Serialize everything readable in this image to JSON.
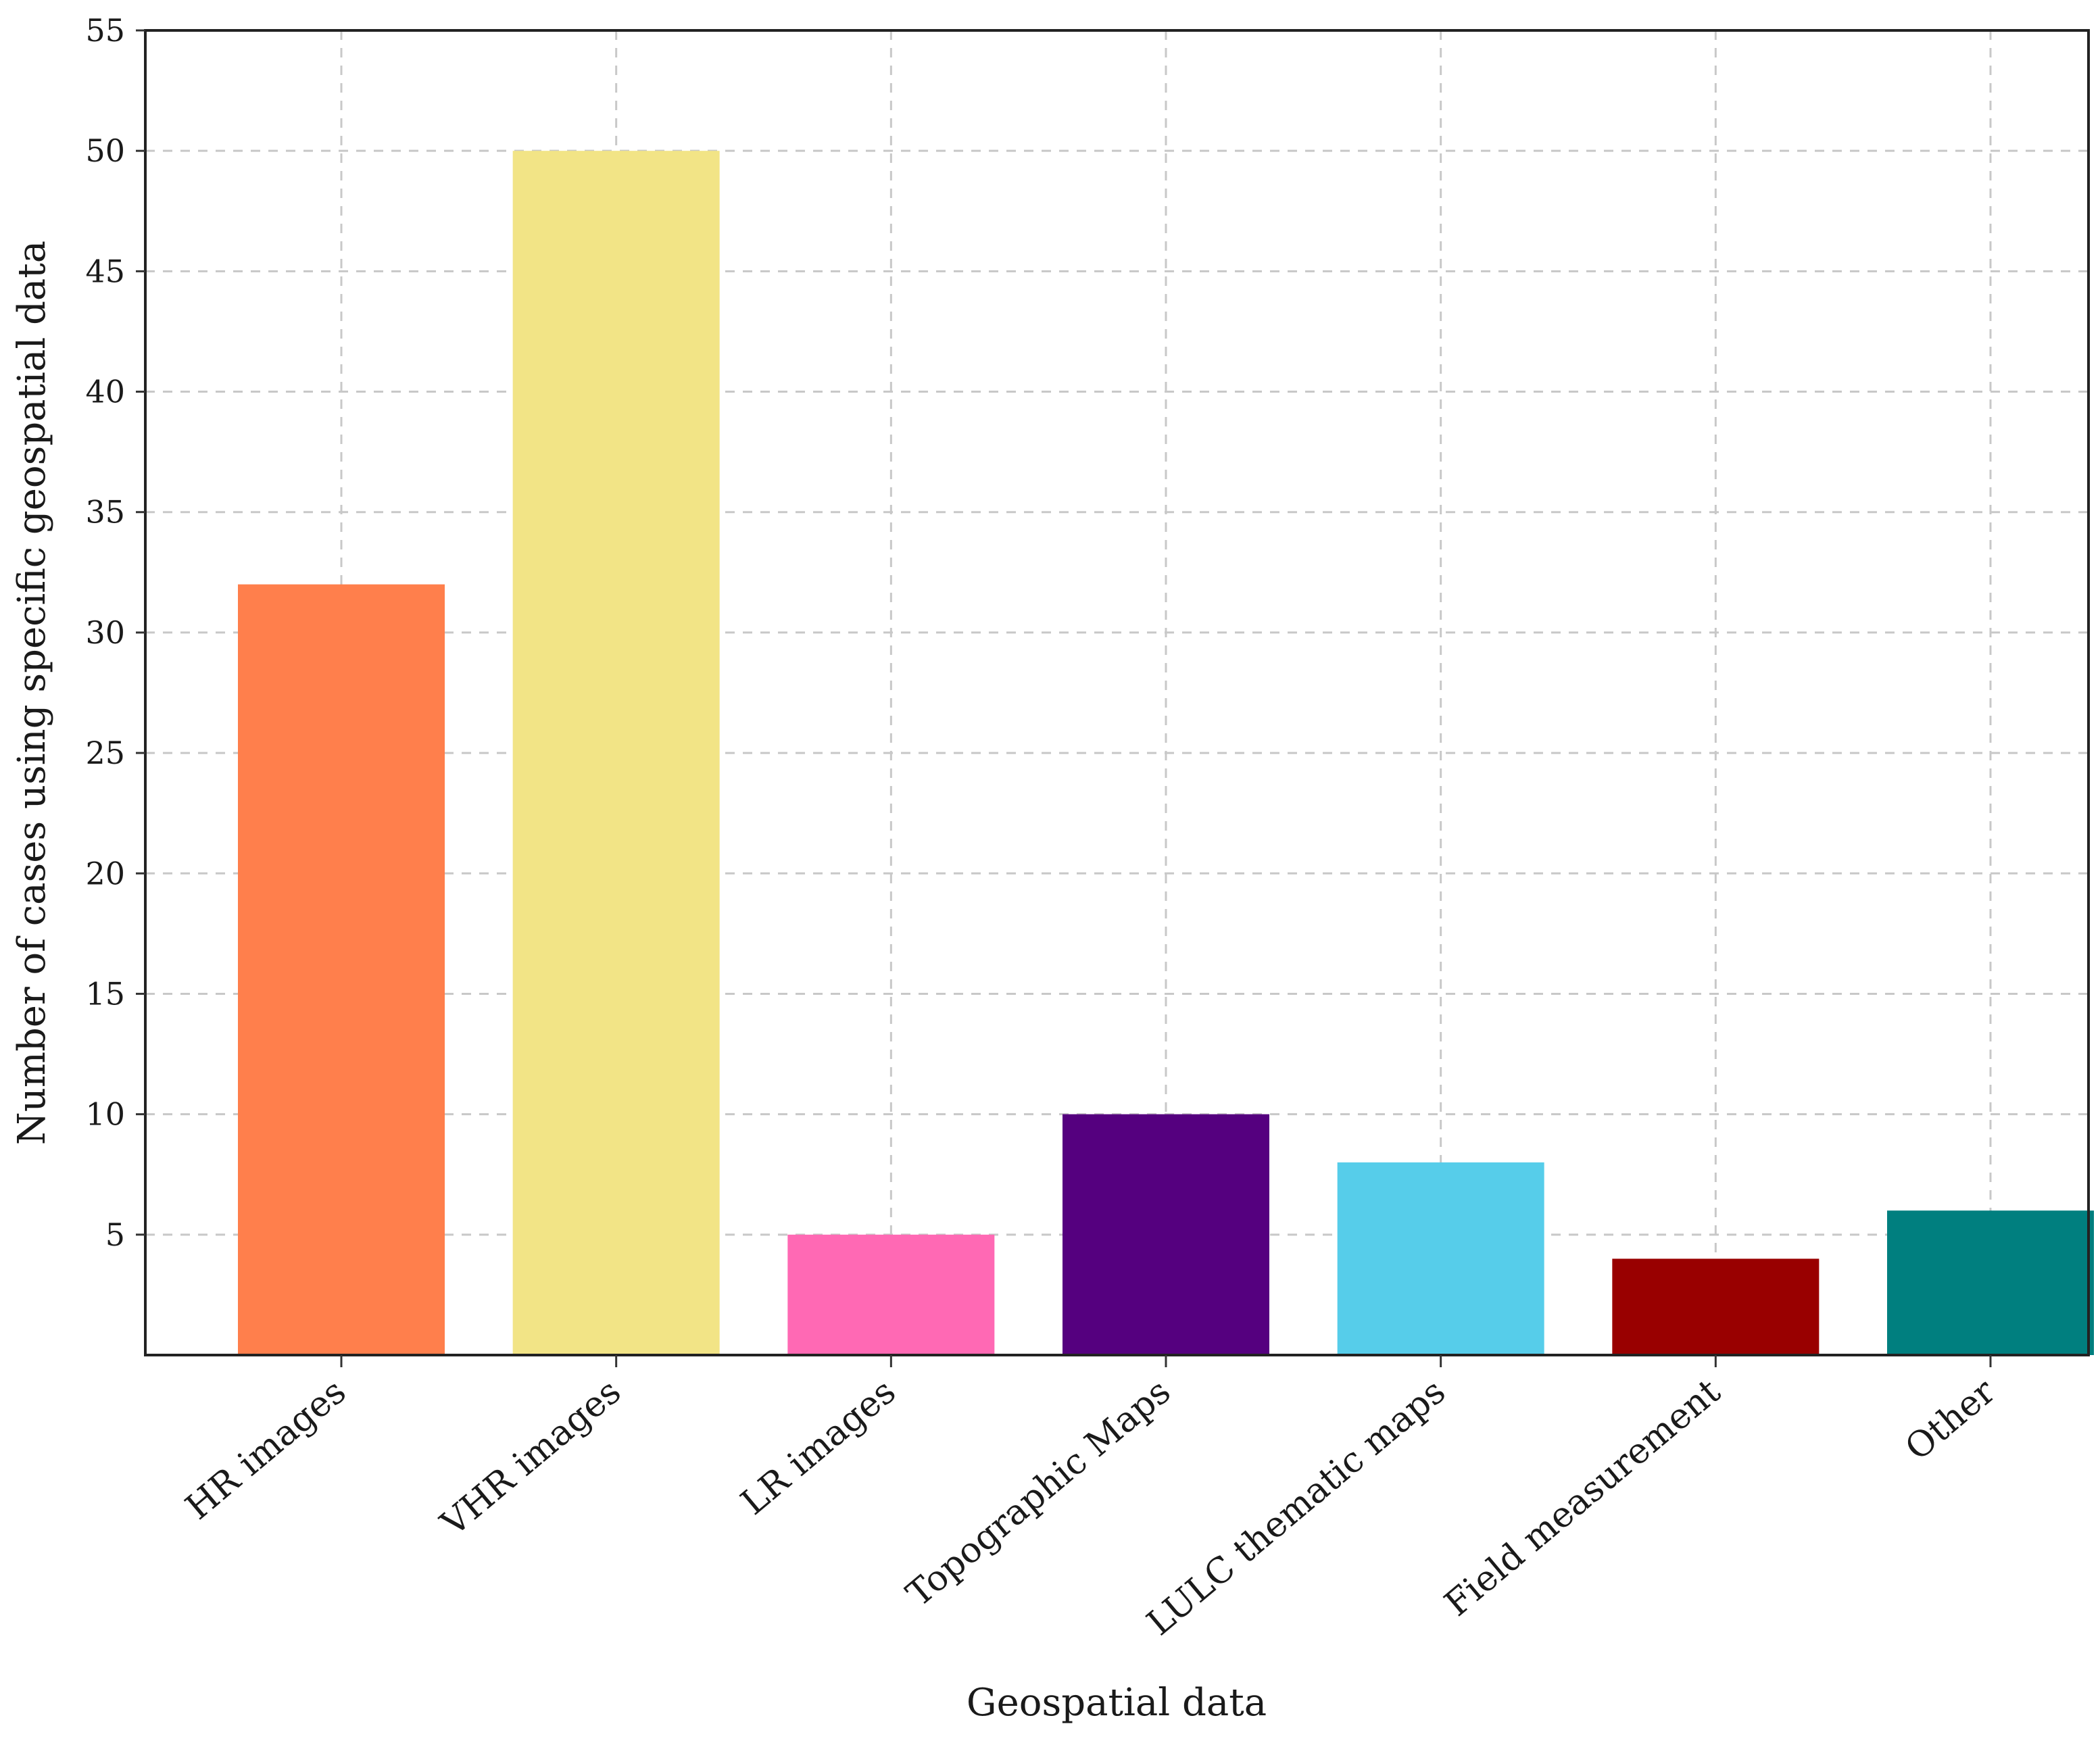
{
  "chart_data": {
    "type": "bar",
    "title": "",
    "xlabel": "Geospatial data",
    "ylabel": "Number of cases using specific geospatial data",
    "categories": [
      "HR images",
      "VHR images",
      "LR images",
      "Topographic Maps",
      "LULC thematic maps",
      "Field measurement",
      "Other"
    ],
    "values": [
      32,
      50,
      5,
      10,
      8,
      4,
      6
    ],
    "colors": [
      "#ff7f4c",
      "#f2e486",
      "#ff69b4",
      "#55007f",
      "#56cdea",
      "#990000",
      "#007f7f"
    ],
    "ylim": [
      0,
      55
    ],
    "yticks": [
      5,
      10,
      15,
      20,
      25,
      30,
      35,
      40,
      45,
      50,
      55
    ],
    "grid": true,
    "legend": "none"
  }
}
